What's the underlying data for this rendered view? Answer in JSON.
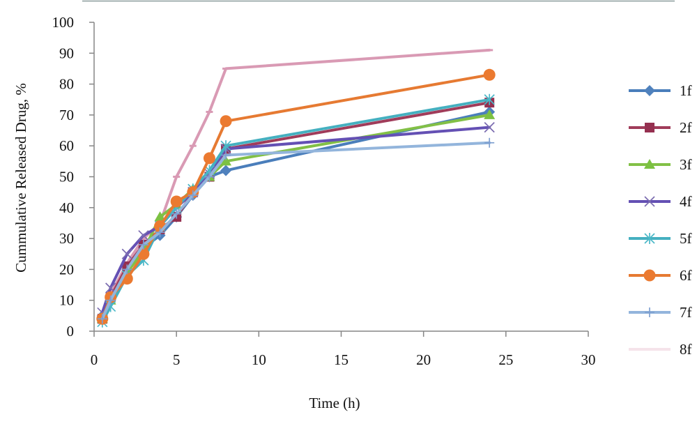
{
  "chart_data": {
    "type": "line",
    "xlabel": "Time (h)",
    "ylabel": "Cummulative Released Drug, %",
    "xlim": [
      0,
      30
    ],
    "ylim": [
      0,
      100
    ],
    "xticks": [
      0,
      5,
      10,
      15,
      20,
      25,
      30
    ],
    "yticks": [
      0,
      10,
      20,
      30,
      40,
      50,
      60,
      70,
      80,
      90,
      100
    ],
    "grid": false,
    "legend_position": "right",
    "x": [
      0.5,
      1,
      2,
      3,
      4,
      5,
      6,
      7,
      8,
      24
    ],
    "series": [
      {
        "name": "1f",
        "color": "#4a7ebb",
        "marker_color": "#4f81bd",
        "marker": "diamond",
        "values": [
          5,
          10,
          20,
          27,
          31,
          37,
          44,
          50,
          52,
          71
        ]
      },
      {
        "name": "2f",
        "color": "#a03c5a",
        "marker_color": "#953050",
        "marker": "square",
        "values": [
          4,
          11,
          21,
          28,
          33,
          37,
          45,
          50,
          59,
          74
        ]
      },
      {
        "name": "3f",
        "color": "#82c046",
        "marker_color": "#7cc142",
        "marker": "triangle",
        "values": [
          4,
          10,
          19,
          26,
          37,
          41,
          46,
          50,
          55,
          70
        ]
      },
      {
        "name": "4f",
        "color": "#6450b4",
        "marker_color": "#7b6cb0",
        "marker": "x",
        "values": [
          6,
          14,
          25,
          31,
          34,
          40,
          45,
          51,
          59,
          66
        ]
      },
      {
        "name": "5f",
        "color": "#45b0c0",
        "marker_color": "#4bb8c8",
        "marker": "asterisk",
        "values": [
          3,
          8,
          18,
          23,
          34,
          40,
          46,
          52,
          60,
          75
        ]
      },
      {
        "name": "6f",
        "color": "#e67a32",
        "marker_color": "#eb7a30",
        "marker": "circle",
        "values": [
          4,
          11,
          17,
          25,
          34,
          42,
          45,
          56,
          68,
          83
        ]
      },
      {
        "name": "7f",
        "color": "#93b5dc",
        "marker_color": "#7e9fd0",
        "marker": "plus",
        "values": [
          4,
          10,
          20,
          28,
          32,
          38,
          44,
          50,
          57,
          61
        ]
      },
      {
        "name": "8f",
        "color": "#d99ab4",
        "marker_color": "#d99ab4",
        "legend_color": "#f5e3ea",
        "marker": "dash",
        "values": [
          4,
          12,
          22,
          30,
          35,
          50,
          60,
          71,
          85,
          91
        ]
      }
    ]
  }
}
